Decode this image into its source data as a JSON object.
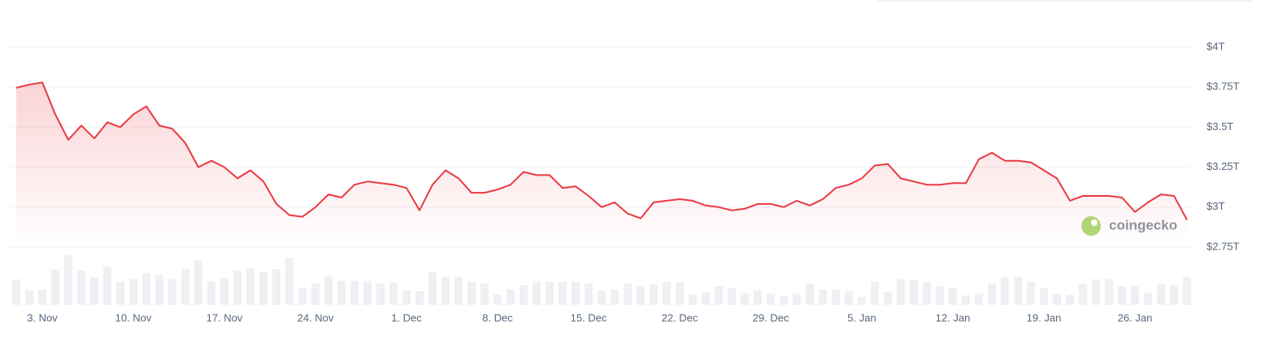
{
  "chart_data": {
    "type": "line",
    "watermark": "coingecko",
    "categories": [
      "1. Nov",
      "2. Nov",
      "3. Nov",
      "4. Nov",
      "5. Nov",
      "6. Nov",
      "7. Nov",
      "8. Nov",
      "9. Nov",
      "10. Nov",
      "11. Nov",
      "12. Nov",
      "13. Nov",
      "14. Nov",
      "15. Nov",
      "16. Nov",
      "17. Nov",
      "18. Nov",
      "19. Nov",
      "20. Nov",
      "21. Nov",
      "22. Nov",
      "23. Nov",
      "24. Nov",
      "25. Nov",
      "26. Nov",
      "27. Nov",
      "28. Nov",
      "29. Nov",
      "30. Nov",
      "1. Dec",
      "2. Dec",
      "3. Dec",
      "4. Dec",
      "5. Dec",
      "6. Dec",
      "7. Dec",
      "8. Dec",
      "9. Dec",
      "10. Dec",
      "11. Dec",
      "12. Dec",
      "13. Dec",
      "14. Dec",
      "15. Dec",
      "16. Dec",
      "17. Dec",
      "18. Dec",
      "19. Dec",
      "20. Dec",
      "21. Dec",
      "22. Dec",
      "23. Dec",
      "24. Dec",
      "25. Dec",
      "26. Dec",
      "27. Dec",
      "28. Dec",
      "29. Dec",
      "30. Dec",
      "31. Dec",
      "1. Jan",
      "2. Jan",
      "3. Jan",
      "4. Jan",
      "5. Jan",
      "6. Jan",
      "7. Jan",
      "8. Jan",
      "9. Jan",
      "10. Jan",
      "11. Jan",
      "12. Jan",
      "13. Jan",
      "14. Jan",
      "15. Jan",
      "16. Jan",
      "17. Jan",
      "18. Jan",
      "19. Jan",
      "20. Jan",
      "21. Jan",
      "22. Jan",
      "23. Jan",
      "24. Jan",
      "25. Jan",
      "26. Jan",
      "27. Jan",
      "28. Jan",
      "29. Jan",
      "30. Jan"
    ],
    "series": [
      {
        "color": "#ea3943",
        "values": [
          3.746,
          3.766,
          3.78,
          3.58,
          3.42,
          3.51,
          3.43,
          3.53,
          3.5,
          3.58,
          3.63,
          3.51,
          3.49,
          3.4,
          3.25,
          3.29,
          3.25,
          3.18,
          3.23,
          3.16,
          3.02,
          2.95,
          2.94,
          3.0,
          3.08,
          3.06,
          3.14,
          3.16,
          3.15,
          3.14,
          3.12,
          2.98,
          3.14,
          3.23,
          3.18,
          3.09,
          3.09,
          3.11,
          3.14,
          3.22,
          3.2,
          3.2,
          3.12,
          3.13,
          3.07,
          3.0,
          3.03,
          2.96,
          2.93,
          3.03,
          3.04,
          3.05,
          3.04,
          3.01,
          3.0,
          2.98,
          2.99,
          3.02,
          3.02,
          3.0,
          3.04,
          3.01,
          3.05,
          3.12,
          3.14,
          3.18,
          3.26,
          3.27,
          3.18,
          3.16,
          3.14,
          3.14,
          3.15,
          3.15,
          3.3,
          3.34,
          3.29,
          3.29,
          3.28,
          3.23,
          3.18,
          3.04,
          3.07,
          3.07,
          3.07,
          3.06,
          2.97,
          3.03,
          3.08,
          3.07,
          2.92
        ]
      },
      {
        "type": "bar",
        "axis": "y2",
        "color": "#eef0f3",
        "values": [
          30,
          17,
          18,
          42,
          58,
          40,
          32,
          45,
          27,
          30,
          37,
          35,
          30,
          42,
          52,
          27,
          31,
          40,
          43,
          38,
          42,
          55,
          20,
          25,
          33,
          28,
          28,
          28,
          25,
          26,
          17,
          16,
          38,
          33,
          33,
          27,
          25,
          12,
          18,
          23,
          28,
          27,
          27,
          27,
          25,
          17,
          18,
          25,
          22,
          24,
          27,
          26,
          12,
          15,
          22,
          20,
          14,
          17,
          13,
          10,
          13,
          25,
          18,
          18,
          16,
          9,
          27,
          15,
          30,
          29,
          27,
          22,
          20,
          11,
          13,
          25,
          33,
          33,
          27,
          20,
          13,
          12,
          24,
          30,
          30,
          22,
          23,
          14,
          24,
          23,
          33
        ]
      }
    ],
    "ylim": [
      2.75,
      4
    ],
    "yticks": [
      {
        "value": 2.75,
        "label": "$2.75T"
      },
      {
        "value": 3,
        "label": "$3T"
      },
      {
        "value": 3.25,
        "label": "$3.25T"
      },
      {
        "value": 3.5,
        "label": "$3.5T"
      },
      {
        "value": 3.75,
        "label": "$3.75T"
      },
      {
        "value": 4,
        "label": "$4T"
      }
    ],
    "y2lim": [
      0,
      60
    ],
    "xticks": [
      "3. Nov",
      "10. Nov",
      "17. Nov",
      "24. Nov",
      "1. Dec",
      "8. Dec",
      "15. Dec",
      "22. Dec",
      "29. Dec",
      "5. Jan",
      "12. Jan",
      "19. Jan",
      "26. Jan"
    ],
    "grid": true
  }
}
